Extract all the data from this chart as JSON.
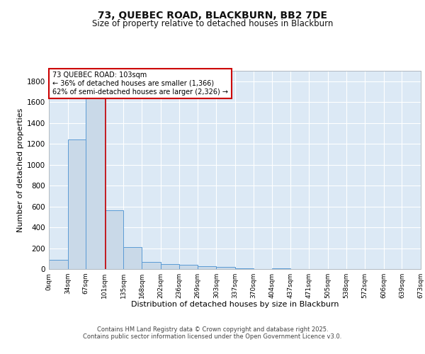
{
  "title_line1": "73, QUEBEC ROAD, BLACKBURN, BB2 7DE",
  "title_line2": "Size of property relative to detached houses in Blackburn",
  "xlabel": "Distribution of detached houses by size in Blackburn",
  "ylabel": "Number of detached properties",
  "footer_line1": "Contains HM Land Registry data © Crown copyright and database right 2025.",
  "footer_line2": "Contains public sector information licensed under the Open Government Licence v3.0.",
  "annotation_line1": "73 QUEBEC ROAD: 103sqm",
  "annotation_line2": "← 36% of detached houses are smaller (1,366)",
  "annotation_line3": "62% of semi-detached houses are larger (2,326) →",
  "property_size_sqm": 103,
  "bar_color": "#c9d9e8",
  "bar_edgecolor": "#5b9bd5",
  "redline_color": "#cc0000",
  "annotation_boxcolor": "#ffffff",
  "annotation_boxedgecolor": "#cc0000",
  "background_color": "#dce9f5",
  "grid_color": "#ffffff",
  "fig_background": "#ffffff",
  "bin_edges": [
    0,
    34,
    67,
    101,
    135,
    168,
    202,
    236,
    269,
    303,
    337,
    370,
    404,
    437,
    471,
    505,
    538,
    572,
    606,
    639,
    673
  ],
  "bin_labels": [
    "0sqm",
    "34sqm",
    "67sqm",
    "101sqm",
    "135sqm",
    "168sqm",
    "202sqm",
    "236sqm",
    "269sqm",
    "303sqm",
    "337sqm",
    "370sqm",
    "404sqm",
    "437sqm",
    "471sqm",
    "505sqm",
    "538sqm",
    "572sqm",
    "606sqm",
    "639sqm",
    "673sqm"
  ],
  "counts": [
    90,
    1240,
    1700,
    560,
    210,
    65,
    50,
    40,
    28,
    20,
    8,
    3,
    10,
    0,
    0,
    0,
    0,
    0,
    0,
    0
  ],
  "ylim": [
    0,
    1900
  ],
  "yticks": [
    0,
    200,
    400,
    600,
    800,
    1000,
    1200,
    1400,
    1600,
    1800
  ]
}
